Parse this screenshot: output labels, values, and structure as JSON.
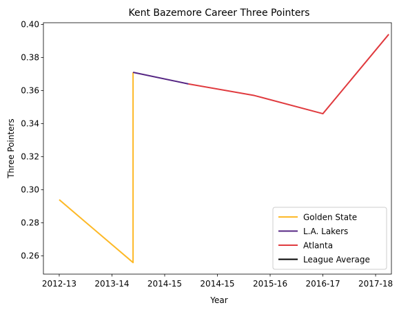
{
  "chart_data": {
    "type": "line",
    "title": "Kent Bazemore Career Three Pointers",
    "xlabel": "Year",
    "ylabel": "Three Pointers",
    "x_tick_labels": [
      "2012-13",
      "2013-14",
      "2014-15",
      "2014-15",
      "2015-16",
      "2016-17",
      "2017-18"
    ],
    "xlim": [
      -0.3,
      6.3
    ],
    "ylim": [
      0.249,
      0.401
    ],
    "y_ticks": [
      0.26,
      0.28,
      0.3,
      0.32,
      0.34,
      0.36,
      0.38,
      0.4
    ],
    "y_tick_labels": [
      "0.26",
      "0.28",
      "0.30",
      "0.32",
      "0.34",
      "0.36",
      "0.38",
      "0.40"
    ],
    "grid": false,
    "legend_position": "lower-right",
    "series": [
      {
        "name": "Golden State",
        "color": "#FDB927",
        "points": [
          [
            0.0,
            0.294
          ],
          [
            1.4,
            0.256
          ],
          [
            1.4,
            0.371
          ]
        ]
      },
      {
        "name": "L.A. Lakers",
        "color": "#552583",
        "points": [
          [
            1.4,
            0.371
          ],
          [
            2.45,
            0.364
          ]
        ]
      },
      {
        "name": "Atlanta",
        "color": "#E03A3E",
        "points": [
          [
            2.45,
            0.364
          ],
          [
            3.7,
            0.357
          ],
          [
            5.0,
            0.346
          ],
          [
            6.25,
            0.394
          ]
        ]
      },
      {
        "name": "League Average",
        "color": "#000000",
        "points": []
      }
    ]
  }
}
